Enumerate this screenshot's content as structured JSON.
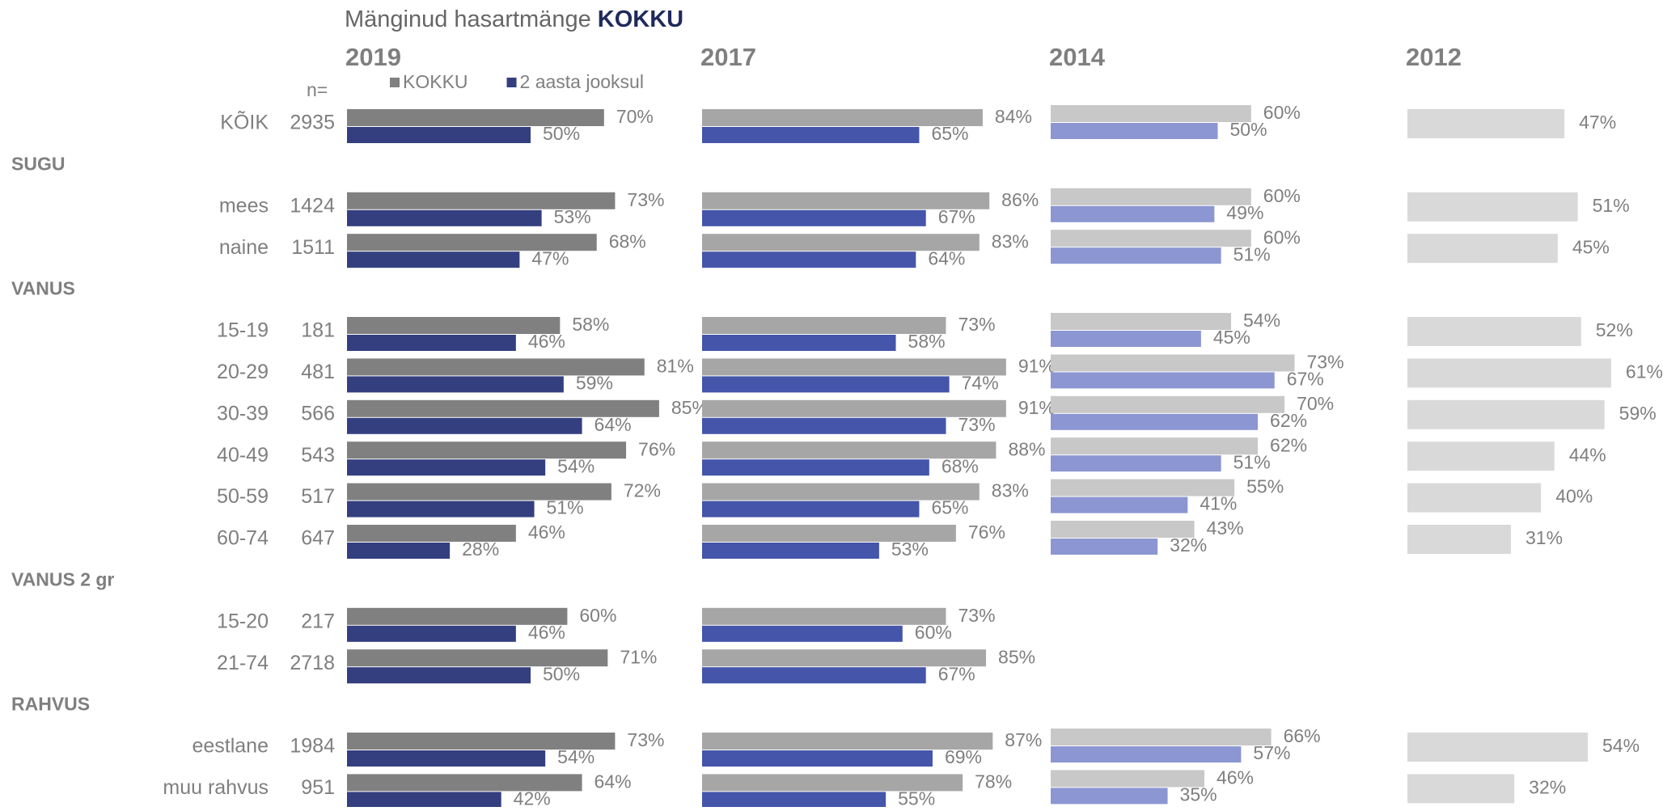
{
  "title": "Mänginud hasartmänge",
  "title_emphasis": "KOKKU",
  "n_header": "n=",
  "rows": [
    {
      "label": "KÕIK",
      "n": 2935
    },
    {
      "group": "SUGU"
    },
    {
      "label": "mees",
      "n": 1424
    },
    {
      "label": "naine",
      "n": 1511
    },
    {
      "group": "VANUS"
    },
    {
      "label": "15-19",
      "n": 181
    },
    {
      "label": "20-29",
      "n": 481
    },
    {
      "label": "30-39",
      "n": 566
    },
    {
      "label": "40-49",
      "n": 543
    },
    {
      "label": "50-59",
      "n": 517
    },
    {
      "label": "60-74",
      "n": 647
    },
    {
      "group": "VANUS 2 gr"
    },
    {
      "label": "15-20",
      "n": 217
    },
    {
      "label": "21-74",
      "n": 2718
    },
    {
      "group": "RAHVUS"
    },
    {
      "label": "eestlane",
      "n": 1984
    },
    {
      "label": "muu rahvus",
      "n": 951
    }
  ],
  "chart_data": [
    {
      "type": "bar",
      "title": "2019",
      "series": [
        {
          "name": "KOKKU",
          "color": "#808080",
          "values": [
            70,
            null,
            73,
            68,
            null,
            58,
            81,
            85,
            76,
            72,
            46,
            null,
            60,
            71,
            null,
            73,
            64
          ],
          "value_labels": [
            "70%",
            null,
            "73%",
            "68%",
            null,
            "58%",
            "81%",
            "85%",
            "76%",
            "72%",
            "46%",
            null,
            "60%",
            "71%",
            null,
            "73%",
            "64%"
          ]
        },
        {
          "name": "2 aasta jooksul",
          "color": "#333f7f",
          "values": [
            50,
            null,
            53,
            47,
            null,
            46,
            59,
            64,
            54,
            51,
            28,
            null,
            46,
            50,
            null,
            54,
            42
          ],
          "value_labels": [
            "50%",
            null,
            "53%",
            "47%",
            null,
            "46%",
            "59%",
            "64%",
            "54%",
            "51%",
            "28%",
            null,
            "46%",
            "50%",
            null,
            "54%",
            "42%"
          ]
        }
      ]
    },
    {
      "type": "bar",
      "title": "2017",
      "series": [
        {
          "color": "#a6a6a6",
          "values": [
            84,
            null,
            86,
            83,
            null,
            73,
            91,
            91,
            88,
            83,
            76,
            null,
            73,
            85,
            null,
            87,
            78
          ],
          "value_labels": [
            "84%",
            null,
            "86%",
            "83%",
            null,
            "73%",
            "91%",
            "91%",
            "88%",
            "83%",
            "76%",
            null,
            "73%",
            "85%",
            null,
            "87%",
            "78%"
          ]
        },
        {
          "color": "#4455aa",
          "values": [
            65,
            null,
            67,
            64,
            null,
            58,
            74,
            73,
            68,
            65,
            53,
            null,
            60,
            67,
            null,
            69,
            55
          ],
          "value_labels": [
            "65%",
            null,
            "67%",
            "64%",
            null,
            "58%",
            "74%",
            "73%",
            "68%",
            "65%",
            "53%",
            null,
            "60%",
            "67%",
            null,
            "69%",
            "55%"
          ]
        }
      ]
    },
    {
      "type": "bar",
      "title": "2014",
      "series": [
        {
          "color": "#c8c8c8",
          "values": [
            60,
            null,
            60,
            60,
            null,
            54,
            73,
            70,
            62,
            55,
            43,
            null,
            null,
            null,
            null,
            66,
            46
          ],
          "value_labels": [
            "60%",
            null,
            "60%",
            "60%",
            null,
            "54%",
            "73%",
            "70%",
            "62%",
            "55%",
            "43%",
            null,
            null,
            null,
            null,
            "66%",
            "46%"
          ]
        },
        {
          "color": "#8c96d2",
          "values": [
            50,
            null,
            49,
            51,
            null,
            45,
            67,
            62,
            51,
            41,
            32,
            null,
            null,
            null,
            null,
            57,
            35
          ],
          "value_labels": [
            "50%",
            null,
            "49%",
            "51%",
            null,
            "45%",
            "67%",
            "62%",
            "51%",
            "41%",
            "32%",
            null,
            null,
            null,
            null,
            "57%",
            "35%"
          ]
        }
      ]
    },
    {
      "type": "bar",
      "title": "2012",
      "series": [
        {
          "color": "#d9d9d9",
          "values": [
            47,
            null,
            51,
            45,
            null,
            52,
            61,
            59,
            44,
            40,
            31,
            null,
            null,
            null,
            null,
            54,
            32
          ],
          "value_labels": [
            "47%",
            null,
            "51%",
            "45%",
            null,
            "52%",
            "61%",
            "59%",
            "44%",
            "40%",
            "31%",
            null,
            null,
            null,
            null,
            "54%",
            "32%"
          ]
        }
      ]
    }
  ]
}
